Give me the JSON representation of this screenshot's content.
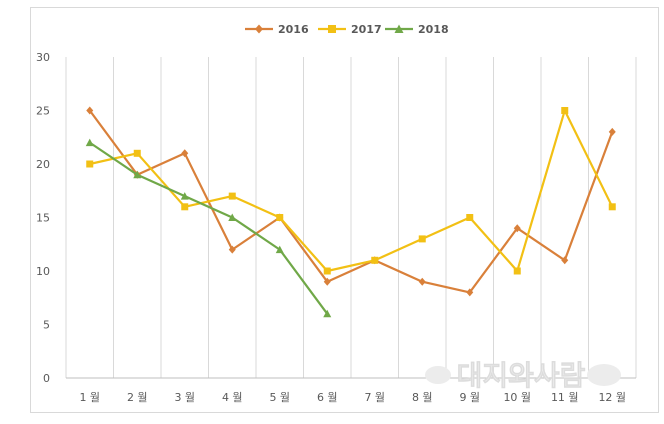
{
  "chart_data": {
    "type": "line",
    "categories": [
      "1 월",
      "2 월",
      "3 월",
      "4 월",
      "5 월",
      "6 월",
      "7 월",
      "8 월",
      "9 월",
      "10 월",
      "11 월",
      "12 월"
    ],
    "series": [
      {
        "name": "2016",
        "color": "#D9803A",
        "marker": "diamond",
        "values": [
          25,
          19,
          21,
          12,
          15,
          9,
          11,
          9,
          8,
          14,
          11,
          23
        ]
      },
      {
        "name": "2017",
        "color": "#F2C014",
        "marker": "square",
        "values": [
          20,
          21,
          16,
          17,
          15,
          10,
          11,
          13,
          15,
          10,
          25,
          16
        ]
      },
      {
        "name": "2018",
        "color": "#70A848",
        "marker": "triangle",
        "values": [
          22,
          19,
          17,
          15,
          12,
          6,
          null,
          null,
          null,
          null,
          null,
          null
        ]
      }
    ],
    "yticks": [
      0,
      5,
      10,
      15,
      20,
      25,
      30
    ],
    "ylim": [
      0,
      30
    ],
    "grid": "vertical",
    "legend_position": "top",
    "watermark": "대지와사람"
  }
}
